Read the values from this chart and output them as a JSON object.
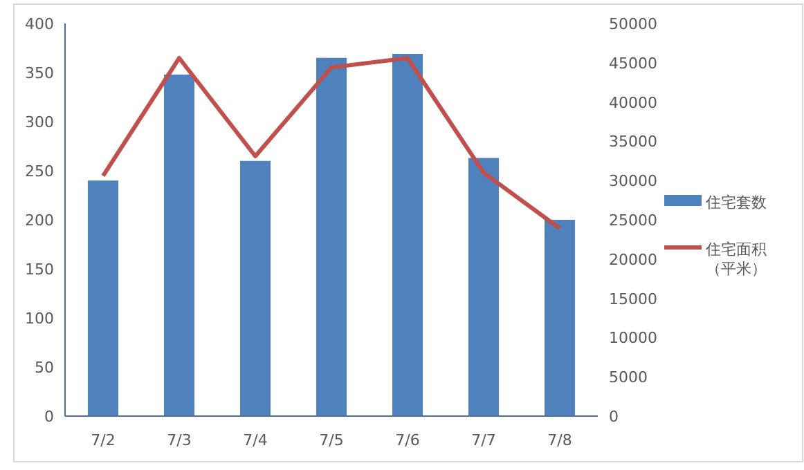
{
  "chart_data": {
    "type": "bar",
    "categories": [
      "7/2",
      "7/3",
      "7/4",
      "7/5",
      "7/6",
      "7/7",
      "7/8"
    ],
    "series": [
      {
        "name": "住宅套数",
        "color": "#4f81bd",
        "values": [
          240,
          348,
          260,
          365,
          369,
          263,
          200
        ]
      },
      {
        "name": "住宅面积（平米）",
        "color": "#c0504d",
        "type": "line",
        "axis": "y2",
        "values": [
          30600,
          45600,
          33100,
          44400,
          45600,
          31000,
          23900
        ]
      }
    ],
    "ylim": [
      0,
      400
    ],
    "yticks": [
      0,
      50,
      100,
      150,
      200,
      250,
      300,
      350,
      400
    ],
    "y2lim": [
      0,
      50000
    ],
    "y2ticks": [
      0,
      5000,
      10000,
      15000,
      20000,
      25000,
      30000,
      35000,
      40000,
      45000,
      50000
    ],
    "grid": false,
    "legend": "right",
    "marker": "none",
    "line_style": "solid"
  }
}
